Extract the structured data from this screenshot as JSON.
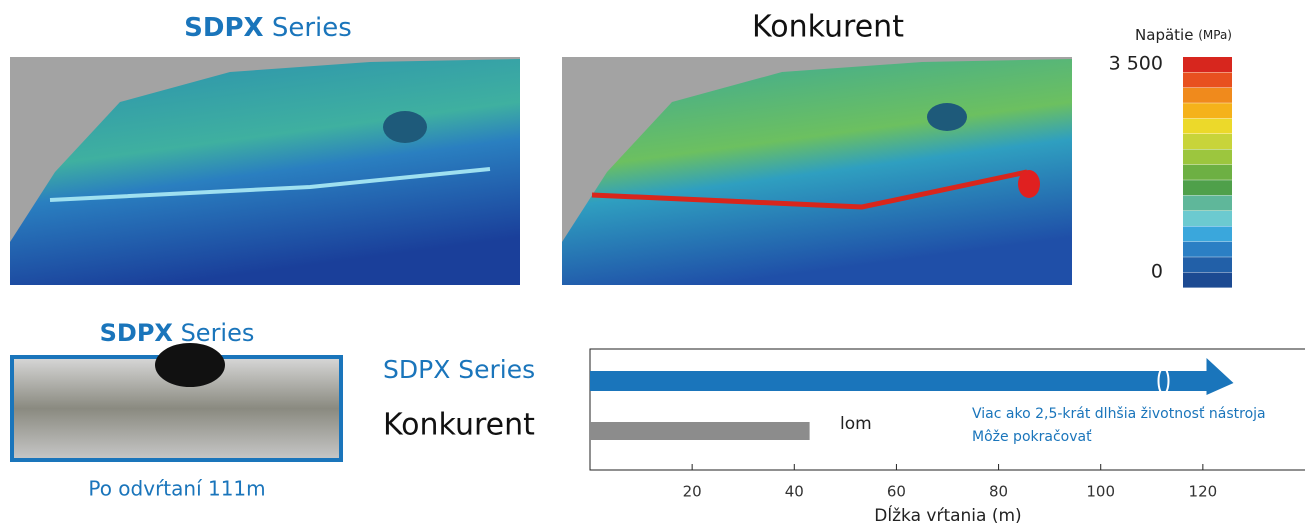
{
  "top": {
    "left_title": {
      "brand": "SDPX",
      "name": "Series"
    },
    "right_title": "Konkurent",
    "scale": {
      "title": "Napätie",
      "unit": "(MPa)",
      "max_label": "3 500",
      "min_label": "0"
    }
  },
  "photo": {
    "title": {
      "brand": "SDPX",
      "name": "Series"
    },
    "caption": "Po odvŕtaní 111m"
  },
  "chart_data": {
    "type": "bar",
    "orientation": "horizontal",
    "categories": [
      "SDPX Series",
      "Konkurent"
    ],
    "values": [
      126,
      43
    ],
    "colors": [
      "#1a75bb",
      "#8c8c8c"
    ],
    "xlim": [
      0,
      140
    ],
    "xticks": [
      20,
      40,
      60,
      80,
      100,
      120
    ],
    "xlabel": "Dĺžka vŕtania (m)",
    "annotations": [
      "lom",
      "Viac ako 2,5-krát dlhšia životnosť nástroja",
      "Môže pokračovať"
    ]
  }
}
